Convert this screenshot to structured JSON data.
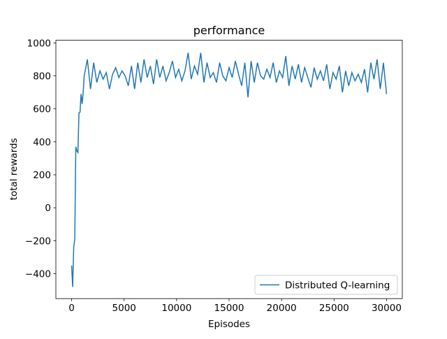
{
  "chart_data": {
    "type": "line",
    "title": "performance",
    "xlabel": "Episodes",
    "ylabel": "total rewards",
    "x": [
      0,
      100,
      200,
      300,
      400,
      500,
      600,
      700,
      800,
      900,
      1000,
      1100,
      1200,
      1500,
      1800,
      2100,
      2400,
      2700,
      3000,
      3300,
      3600,
      3900,
      4200,
      4500,
      4800,
      5100,
      5400,
      5700,
      6000,
      6300,
      6600,
      6900,
      7200,
      7500,
      7800,
      8100,
      8400,
      8700,
      9000,
      9300,
      9600,
      9900,
      10200,
      10500,
      10800,
      11100,
      11400,
      11700,
      12000,
      12300,
      12600,
      12900,
      13200,
      13500,
      13800,
      14100,
      14400,
      14700,
      15000,
      15300,
      15600,
      15900,
      16200,
      16500,
      16800,
      17100,
      17400,
      17700,
      18000,
      18300,
      18600,
      18900,
      19200,
      19500,
      19800,
      20100,
      20400,
      20700,
      21000,
      21300,
      21600,
      21900,
      22200,
      22500,
      22800,
      23100,
      23400,
      23700,
      24000,
      24300,
      24600,
      24900,
      25200,
      25500,
      25800,
      26100,
      26400,
      26700,
      27000,
      27300,
      27600,
      27900,
      28200,
      28500,
      28800,
      29100,
      29400,
      29700,
      30000
    ],
    "series": [
      {
        "name": "Distributed Q-learning",
        "color": "#1f77b4",
        "values": [
          -350,
          -480,
          -240,
          -190,
          370,
          345,
          335,
          575,
          580,
          690,
          630,
          700,
          800,
          900,
          720,
          880,
          760,
          830,
          780,
          820,
          720,
          810,
          850,
          790,
          830,
          800,
          740,
          860,
          720,
          880,
          760,
          900,
          790,
          860,
          750,
          900,
          790,
          860,
          770,
          820,
          890,
          790,
          840,
          770,
          830,
          940,
          780,
          860,
          810,
          940,
          760,
          880,
          790,
          820,
          760,
          880,
          800,
          770,
          850,
          790,
          890,
          810,
          740,
          880,
          670,
          890,
          760,
          880,
          800,
          780,
          840,
          790,
          880,
          760,
          830,
          790,
          920,
          740,
          860,
          780,
          870,
          760,
          850,
          790,
          730,
          850,
          780,
          830,
          770,
          870,
          720,
          820,
          780,
          860,
          700,
          830,
          740,
          820,
          770,
          810,
          760,
          840,
          700,
          880,
          780,
          900,
          720,
          880,
          690
        ]
      }
    ],
    "xlim": [
      -1500,
      31500
    ],
    "ylim": [
      -551,
      1016
    ],
    "xticks": [
      0,
      5000,
      10000,
      15000,
      20000,
      25000,
      30000
    ],
    "yticks": [
      {
        "value": -400,
        "label": "−400"
      },
      {
        "value": -200,
        "label": "−200"
      },
      0,
      200,
      400,
      600,
      800,
      1000
    ],
    "legend": "lower right"
  }
}
